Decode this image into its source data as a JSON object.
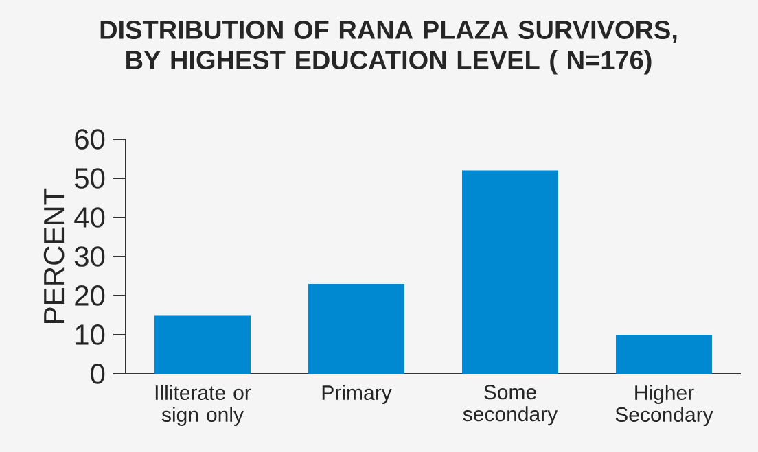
{
  "chart_data": {
    "type": "bar",
    "title": "DISTRIBUTION OF RANA PLAZA SURVIVORS, BY HIGHEST EDUCATION LEVEL ( N=176)",
    "ylabel": "PERCENT",
    "categories": [
      "Illiterate or sign only",
      "Primary",
      "Some secondary",
      "Higher Secondary"
    ],
    "values": [
      15,
      23,
      52,
      10
    ],
    "color": "#0088d1",
    "ylim": [
      0,
      60
    ],
    "yticks": [
      0,
      10,
      20,
      30,
      40,
      50,
      60
    ]
  }
}
